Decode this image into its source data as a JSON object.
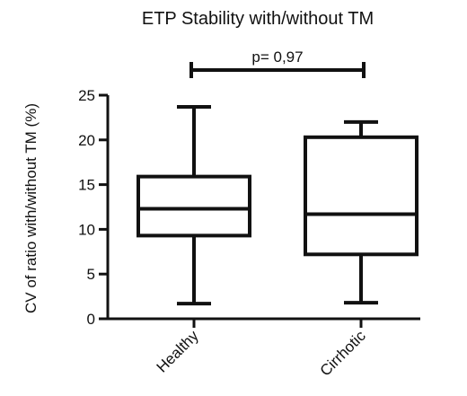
{
  "chart_data": {
    "type": "box",
    "title": "ETP Stability with/without TM",
    "ylabel": "CV of ratio with/without TM (%)",
    "xlabel": "",
    "ylim": [
      0,
      25
    ],
    "yticks": [
      "0",
      "5",
      "10",
      "15",
      "20",
      "25"
    ],
    "categories": [
      "Healthy",
      "Cirrhotic"
    ],
    "boxes": [
      {
        "min": 1.7,
        "q1": 9.3,
        "median": 12.3,
        "q3": 15.9,
        "max": 23.7
      },
      {
        "min": 1.8,
        "q1": 7.2,
        "median": 11.7,
        "q3": 20.3,
        "max": 22.0
      }
    ],
    "annotation": "p= 0,97",
    "grid": false
  }
}
